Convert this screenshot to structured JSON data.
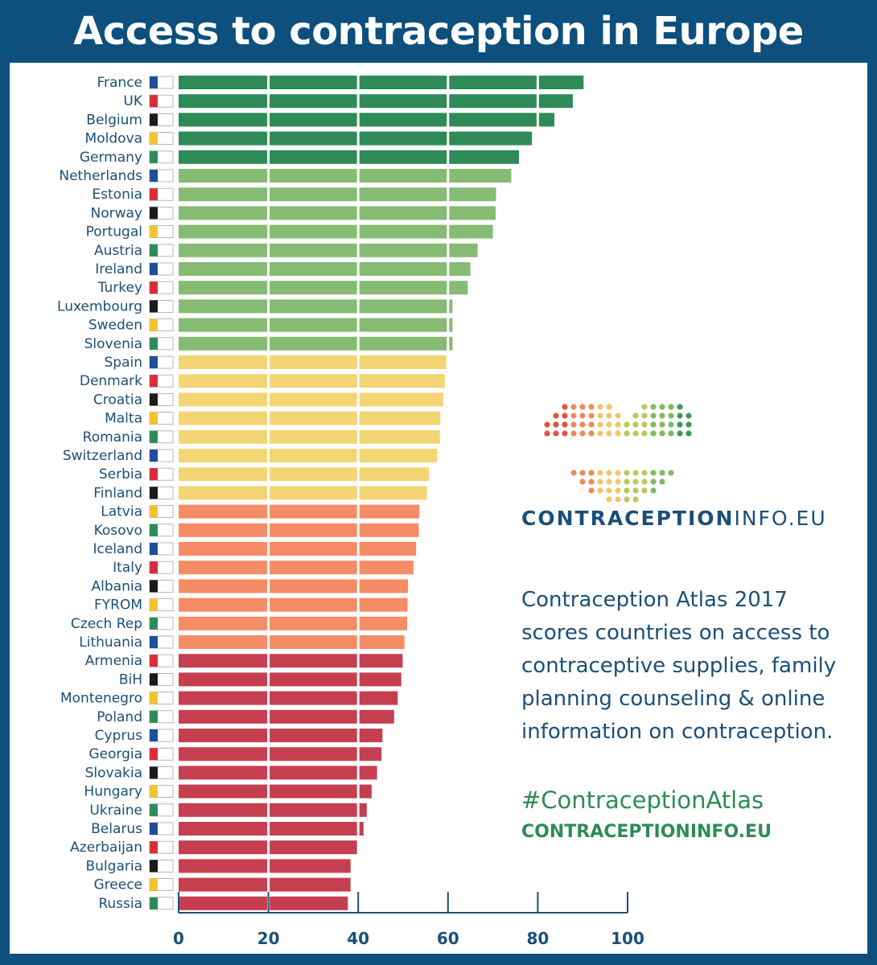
{
  "title": "Access to contraception in Europe",
  "logo": {
    "brand_main": "CONTRACEPTION",
    "brand_suffix": "INFO.EU",
    "dot_colors": [
      "#e0533f",
      "#ee8a55",
      "#f2c56a",
      "#b9c95a",
      "#7dbb63",
      "#3e9a57"
    ]
  },
  "description": "Contraception Atlas 2017 scores countries on access to contraceptive supplies, family planning counseling & online information on contraception.",
  "hashtag": "#ContraceptionAtlas",
  "website": "CONTRACEPTIONINFO.EU",
  "colors": {
    "dark_green": "#2e8b57",
    "light_green": "#86bb73",
    "yellow": "#f3d574",
    "orange": "#f58c65",
    "red": "#c63f50",
    "text": "#1b4f78",
    "background": "#0d4f7d"
  },
  "chart_data": {
    "type": "bar",
    "orientation": "horizontal",
    "title": "Access to contraception in Europe",
    "xlim": [
      0,
      100
    ],
    "xticks": [
      "0",
      "20",
      "40",
      "60",
      "80",
      "100"
    ],
    "series": [
      {
        "categories": [
          "France",
          "UK",
          "Belgium",
          "Moldova",
          "Germany",
          "Netherlands",
          "Estonia",
          "Norway",
          "Portugal",
          "Austria",
          "Ireland",
          "Turkey",
          "Luxembourg",
          "Sweden",
          "Slovenia",
          "Spain",
          "Denmark",
          "Croatia",
          "Malta",
          "Romania",
          "Switzerland",
          "Serbia",
          "Finland",
          "Latvia",
          "Kosovo",
          "Iceland",
          "Italy",
          "Albania",
          "FYROM",
          "Czech Rep",
          "Lithuania",
          "Armenia",
          "BiH",
          "Montenegro",
          "Poland",
          "Cyprus",
          "Georgia",
          "Slovakia",
          "Hungary",
          "Ukraine",
          "Belarus",
          "Azerbaijan",
          "Bulgaria",
          "Greece",
          "Russia"
        ],
        "values": [
          90.2,
          87.8,
          83.7,
          78.7,
          75.8,
          74.1,
          70.7,
          70.6,
          70.0,
          66.6,
          65.0,
          64.4,
          61.0,
          61.0,
          61.0,
          59.6,
          59.3,
          59.0,
          58.3,
          58.2,
          57.6,
          55.8,
          55.3,
          53.6,
          53.5,
          52.9,
          52.3,
          51.1,
          51.0,
          50.9,
          50.3,
          49.9,
          49.6,
          48.8,
          48.0,
          45.4,
          45.2,
          44.2,
          43.0,
          41.9,
          41.2,
          39.8,
          38.3,
          38.3,
          37.7
        ],
        "colors": [
          "#2e8b57",
          "#2e8b57",
          "#2e8b57",
          "#2e8b57",
          "#2e8b57",
          "#86bb73",
          "#86bb73",
          "#86bb73",
          "#86bb73",
          "#86bb73",
          "#86bb73",
          "#86bb73",
          "#86bb73",
          "#86bb73",
          "#86bb73",
          "#f3d574",
          "#f3d574",
          "#f3d574",
          "#f3d574",
          "#f3d574",
          "#f3d574",
          "#f3d574",
          "#f3d574",
          "#f58c65",
          "#f58c65",
          "#f58c65",
          "#f58c65",
          "#f58c65",
          "#f58c65",
          "#f58c65",
          "#f58c65",
          "#c63f50",
          "#c63f50",
          "#c63f50",
          "#c63f50",
          "#c63f50",
          "#c63f50",
          "#c63f50",
          "#c63f50",
          "#c63f50",
          "#c63f50",
          "#c63f50",
          "#c63f50",
          "#c63f50",
          "#c63f50"
        ]
      }
    ],
    "grid": true
  }
}
